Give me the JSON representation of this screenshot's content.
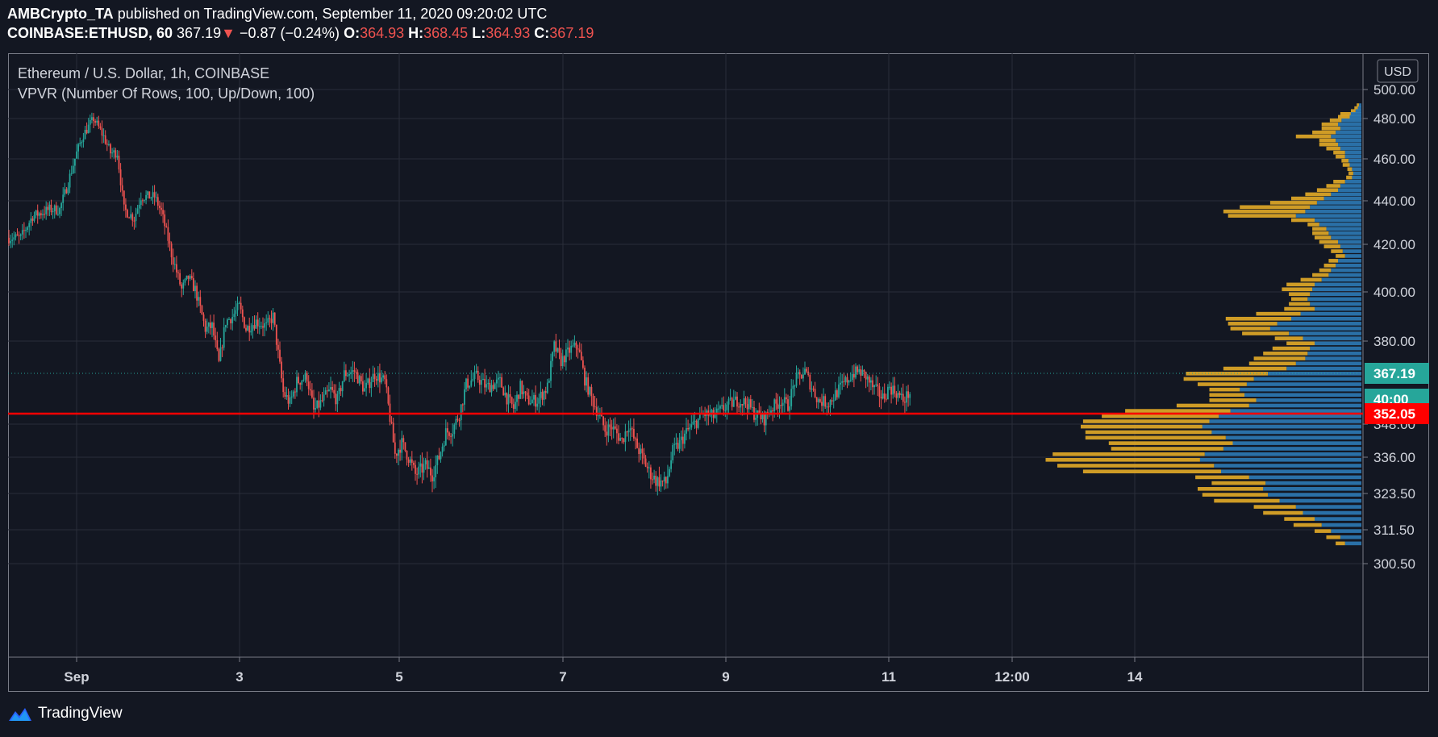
{
  "header": {
    "publisher": "AMBCrypto_TA",
    "published_text": "published on TradingView.com, September 11, 2020 09:20:02 UTC",
    "symbol": "COINBASE:ETHUSD, 60",
    "last": "367.19",
    "change_arrow": "▼",
    "change": "−0.87 (−0.24%)",
    "o_label": "O:",
    "o_value": "364.93",
    "h_label": "H:",
    "h_value": "368.45",
    "l_label": "L:",
    "l_value": "364.93",
    "c_label": "C:",
    "c_value": "367.19"
  },
  "legend": {
    "title": "Ethereum / U.S. Dollar, 1h, COINBASE",
    "indicator": "VPVR (Number Of Rows, 100, Up/Down, 100)"
  },
  "footer": {
    "brand": "TradingView",
    "icon": "tradingview-logo-icon"
  },
  "colors": {
    "background": "#131722",
    "up": "#26a69a",
    "down": "#ef5350",
    "vpvr_up": "#2e7ab6",
    "vpvr_down": "#d9a327",
    "hline": "#ff0000"
  },
  "chart_data": {
    "type": "candlestick",
    "timeframe": "1h",
    "currency": "USD",
    "x_ticks": [
      "Sep",
      "3",
      "5",
      "7",
      "9",
      "11",
      "12:00",
      "14"
    ],
    "y_ticks": [
      "500.00",
      "480.00",
      "460.00",
      "440.00",
      "420.00",
      "400.00",
      "380.00",
      "348.00",
      "336.00",
      "323.50",
      "311.50",
      "300.50"
    ],
    "price_labels": [
      {
        "text": "367.19",
        "value": 367.19,
        "role": "last-price",
        "color": "#26a69a"
      },
      {
        "text": "40:00",
        "value": 357.5,
        "role": "countdown",
        "color": "#26a69a"
      },
      {
        "text": "352.05",
        "value": 352.05,
        "role": "horizontal-line",
        "color": "#ff0000"
      }
    ],
    "horizontal_line": 352.05,
    "last_price": 367.19,
    "close_path": [
      [
        0,
        423
      ],
      [
        7,
        423
      ],
      [
        14,
        433
      ],
      [
        24,
        436
      ],
      [
        30,
        436
      ],
      [
        34,
        446
      ],
      [
        40,
        463
      ],
      [
        44,
        472
      ],
      [
        50,
        480
      ],
      [
        56,
        471
      ],
      [
        60,
        463
      ],
      [
        64,
        463
      ],
      [
        68,
        436
      ],
      [
        74,
        432
      ],
      [
        78,
        442
      ],
      [
        86,
        442
      ],
      [
        90,
        435
      ],
      [
        96,
        416
      ],
      [
        102,
        401
      ],
      [
        106,
        406
      ],
      [
        110,
        401
      ],
      [
        116,
        385
      ],
      [
        120,
        386
      ],
      [
        124,
        371
      ],
      [
        128,
        388
      ],
      [
        132,
        390
      ],
      [
        136,
        394
      ],
      [
        140,
        385
      ],
      [
        146,
        388
      ],
      [
        152,
        386
      ],
      [
        156,
        390
      ],
      [
        162,
        360
      ],
      [
        166,
        356
      ],
      [
        170,
        364
      ],
      [
        176,
        366
      ],
      [
        180,
        353
      ],
      [
        184,
        356
      ],
      [
        190,
        361
      ],
      [
        194,
        357
      ],
      [
        198,
        367
      ],
      [
        204,
        368
      ],
      [
        210,
        361
      ],
      [
        216,
        367
      ],
      [
        222,
        364
      ],
      [
        228,
        337
      ],
      [
        232,
        341
      ],
      [
        236,
        336
      ],
      [
        240,
        330
      ],
      [
        246,
        333
      ],
      [
        250,
        330
      ],
      [
        254,
        336
      ],
      [
        258,
        345
      ],
      [
        262,
        346
      ],
      [
        266,
        352
      ],
      [
        270,
        363
      ],
      [
        276,
        366
      ],
      [
        282,
        362
      ],
      [
        290,
        364
      ],
      [
        294,
        358
      ],
      [
        298,
        354
      ],
      [
        302,
        362
      ],
      [
        306,
        357
      ],
      [
        312,
        357
      ],
      [
        318,
        362
      ],
      [
        322,
        378
      ],
      [
        326,
        372
      ],
      [
        332,
        377
      ],
      [
        336,
        378
      ],
      [
        340,
        365
      ],
      [
        344,
        358
      ],
      [
        348,
        352
      ],
      [
        352,
        346
      ],
      [
        356,
        347
      ],
      [
        362,
        342
      ],
      [
        366,
        348
      ],
      [
        370,
        341
      ],
      [
        374,
        336
      ],
      [
        378,
        331
      ],
      [
        382,
        328
      ],
      [
        388,
        327
      ],
      [
        392,
        338
      ],
      [
        396,
        341
      ],
      [
        400,
        345
      ],
      [
        406,
        349
      ],
      [
        410,
        352
      ],
      [
        416,
        351
      ],
      [
        420,
        353
      ],
      [
        424,
        355
      ],
      [
        430,
        357
      ],
      [
        436,
        356
      ],
      [
        440,
        352
      ],
      [
        446,
        350
      ],
      [
        450,
        354
      ],
      [
        456,
        357
      ],
      [
        460,
        355
      ],
      [
        464,
        364
      ],
      [
        470,
        368
      ],
      [
        474,
        362
      ],
      [
        478,
        357
      ],
      [
        484,
        356
      ],
      [
        490,
        361
      ],
      [
        494,
        364
      ],
      [
        498,
        367
      ],
      [
        502,
        368
      ],
      [
        506,
        366
      ],
      [
        510,
        362
      ],
      [
        516,
        358
      ],
      [
        520,
        362
      ],
      [
        524,
        360
      ],
      [
        528,
        357
      ],
      [
        532,
        360
      ]
    ],
    "vpvr": {
      "rows": 100,
      "levels_price": [
        [
          489,
          2,
          2
        ],
        [
          487,
          3,
          3
        ],
        [
          485,
          5,
          4
        ],
        [
          483,
          9,
          9
        ],
        [
          481,
          10,
          10
        ],
        [
          479,
          17,
          10
        ],
        [
          477,
          20,
          14
        ],
        [
          475,
          18,
          16
        ],
        [
          473,
          22,
          20
        ],
        [
          471,
          26,
          30
        ],
        [
          469,
          22,
          14
        ],
        [
          467,
          20,
          16
        ],
        [
          465,
          18,
          12
        ],
        [
          463,
          14,
          10
        ],
        [
          461,
          14,
          8
        ],
        [
          459,
          11,
          6
        ],
        [
          457,
          10,
          6
        ],
        [
          455,
          8,
          4
        ],
        [
          453,
          7,
          4
        ],
        [
          451,
          8,
          5
        ],
        [
          449,
          14,
          10
        ],
        [
          447,
          18,
          12
        ],
        [
          445,
          20,
          18
        ],
        [
          443,
          26,
          22
        ],
        [
          441,
          32,
          28
        ],
        [
          439,
          38,
          40
        ],
        [
          437,
          44,
          60
        ],
        [
          435,
          48,
          70
        ],
        [
          433,
          56,
          58
        ],
        [
          431,
          40,
          20
        ],
        [
          429,
          36,
          10
        ],
        [
          427,
          30,
          12
        ],
        [
          425,
          28,
          14
        ],
        [
          423,
          26,
          14
        ],
        [
          421,
          20,
          16
        ],
        [
          419,
          18,
          14
        ],
        [
          417,
          16,
          10
        ],
        [
          415,
          14,
          8
        ],
        [
          413,
          20,
          8
        ],
        [
          411,
          22,
          10
        ],
        [
          409,
          26,
          10
        ],
        [
          407,
          28,
          14
        ],
        [
          405,
          34,
          18
        ],
        [
          403,
          40,
          24
        ],
        [
          401,
          42,
          26
        ],
        [
          399,
          44,
          18
        ],
        [
          397,
          46,
          14
        ],
        [
          395,
          44,
          18
        ],
        [
          393,
          40,
          26
        ],
        [
          391,
          52,
          38
        ],
        [
          389,
          60,
          56
        ],
        [
          387,
          72,
          42
        ],
        [
          385,
          78,
          34
        ],
        [
          383,
          62,
          40
        ],
        [
          381,
          50,
          24
        ],
        [
          379,
          40,
          24
        ],
        [
          377,
          44,
          32
        ],
        [
          375,
          46,
          38
        ],
        [
          373,
          48,
          44
        ],
        [
          371,
          56,
          40
        ],
        [
          369,
          64,
          54
        ],
        [
          367,
          80,
          70
        ],
        [
          365,
          92,
          60
        ],
        [
          363,
          98,
          42
        ],
        [
          361,
          104,
          26
        ],
        [
          359,
          100,
          30
        ],
        [
          357,
          90,
          40
        ],
        [
          355,
          96,
          62
        ],
        [
          353,
          112,
          90
        ],
        [
          351,
          122,
          100
        ],
        [
          349,
          130,
          108
        ],
        [
          347,
          136,
          104
        ],
        [
          345,
          128,
          108
        ],
        [
          343,
          116,
          120
        ],
        [
          341,
          110,
          106
        ],
        [
          339,
          118,
          96
        ],
        [
          337,
          134,
          130
        ],
        [
          335,
          138,
          132
        ],
        [
          333,
          126,
          134
        ],
        [
          331,
          120,
          118
        ],
        [
          329,
          96,
          46
        ],
        [
          327,
          82,
          46
        ],
        [
          325,
          84,
          56
        ],
        [
          323,
          80,
          56
        ],
        [
          321,
          70,
          56
        ],
        [
          319,
          56,
          36
        ],
        [
          317,
          50,
          34
        ],
        [
          315,
          40,
          26
        ],
        [
          313,
          34,
          24
        ],
        [
          311,
          26,
          14
        ],
        [
          309,
          18,
          12
        ],
        [
          307,
          14,
          8
        ]
      ],
      "note_units": "volume_relative"
    }
  }
}
